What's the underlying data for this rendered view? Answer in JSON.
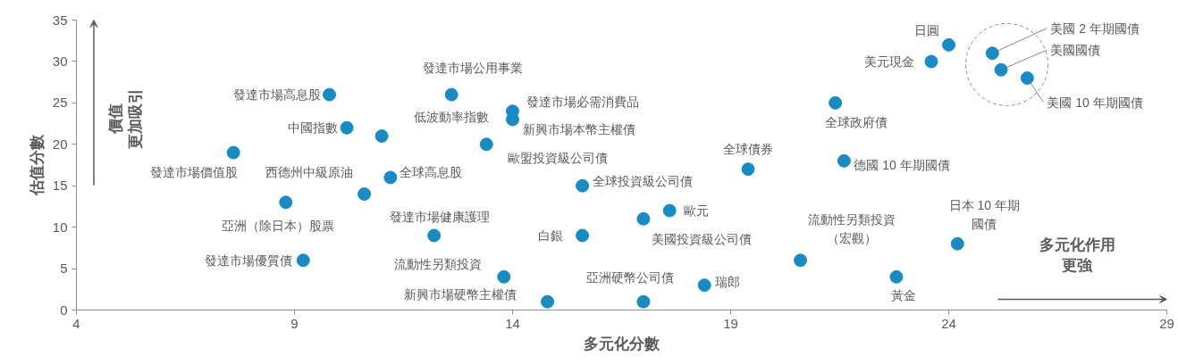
{
  "chart_data": {
    "type": "scatter",
    "xlabel": "多元化分數",
    "ylabel": "估值分數",
    "x": [
      7.6,
      8.8,
      9.2,
      9.8,
      10.2,
      10.6,
      11.0,
      11.2,
      12.2,
      12.6,
      13.4,
      13.8,
      14.0,
      14.0,
      14.8,
      15.6,
      15.6,
      17.0,
      17.0,
      17.6,
      18.4,
      19.4,
      20.6,
      21.4,
      21.6,
      22.8,
      23.6,
      24.0,
      24.2,
      25.0,
      25.2,
      25.8
    ],
    "values": [
      19,
      13,
      6,
      26,
      22,
      14,
      21,
      16,
      9,
      26,
      20,
      4,
      24,
      23,
      1,
      15,
      9,
      1,
      11,
      12,
      3,
      17,
      6,
      25,
      18,
      4,
      30,
      32,
      8,
      31,
      29,
      28
    ],
    "color": "#1a8bc0",
    "marker": "circle",
    "grid": false,
    "xlim": [
      4,
      29
    ],
    "ylim": [
      0,
      35
    ],
    "xticks": [
      4,
      9,
      14,
      19,
      24,
      29
    ],
    "yticks": [
      0,
      5,
      10,
      15,
      20,
      25,
      30,
      35
    ],
    "annotations": [
      {
        "text": "發達市場價值股",
        "x": 7.6,
        "y": 19
      },
      {
        "text": "亞洲（除日本）股票",
        "x": 8.8,
        "y": 13
      },
      {
        "text": "發達市場優質債",
        "x": 9.2,
        "y": 6
      },
      {
        "text": "發達市場高息股",
        "x": 9.8,
        "y": 26
      },
      {
        "text": "中國指數",
        "x": 10.2,
        "y": 22
      },
      {
        "text": "西德州中級原油",
        "x": 10.6,
        "y": 14
      },
      {
        "text": "低波動率指數",
        "x": 11.0,
        "y": 21
      },
      {
        "text": "全球高息股",
        "x": 11.2,
        "y": 16
      },
      {
        "text": "發達市場健康護理",
        "x": 12.2,
        "y": 9
      },
      {
        "text": "發達市場公用事業",
        "x": 12.6,
        "y": 26
      },
      {
        "text": "歐盟投資級公司債",
        "x": 13.4,
        "y": 20
      },
      {
        "text": "流動性另類投資",
        "x": 13.8,
        "y": 4
      },
      {
        "text": "發達市場必需消費品",
        "x": 14.0,
        "y": 24
      },
      {
        "text": "新興市場本幣主權債",
        "x": 14.0,
        "y": 23
      },
      {
        "text": "新興市場硬幣主權債",
        "x": 14.8,
        "y": 1
      },
      {
        "text": "全球投資級公司債",
        "x": 15.6,
        "y": 15
      },
      {
        "text": "白銀",
        "x": 15.6,
        "y": 9
      },
      {
        "text": "亞洲硬幣公司債",
        "x": 17.0,
        "y": 1
      },
      {
        "text": "美國投資級公司債",
        "x": 17.0,
        "y": 11
      },
      {
        "text": "歐元",
        "x": 17.6,
        "y": 12
      },
      {
        "text": "瑞郎",
        "x": 18.4,
        "y": 3
      },
      {
        "text": "全球債券",
        "x": 19.4,
        "y": 17
      },
      {
        "text": "流動性另類投資（宏觀）",
        "x": 20.6,
        "y": 6
      },
      {
        "text": "全球政府債",
        "x": 21.4,
        "y": 25
      },
      {
        "text": "德國 10 年期國債",
        "x": 21.6,
        "y": 18
      },
      {
        "text": "黃金",
        "x": 22.8,
        "y": 4
      },
      {
        "text": "美元現金",
        "x": 23.6,
        "y": 30
      },
      {
        "text": "日圓",
        "x": 24.0,
        "y": 32
      },
      {
        "text": "日本 10 年期國債",
        "x": 24.2,
        "y": 8
      },
      {
        "text": "美國 2 年期國債",
        "x": 25.0,
        "y": 31
      },
      {
        "text": "美國國債",
        "x": 25.2,
        "y": 29
      },
      {
        "text": "美國 10 年期國債",
        "x": 25.8,
        "y": 28
      },
      "價值更加吸引",
      "多元化作用更強"
    ]
  }
}
